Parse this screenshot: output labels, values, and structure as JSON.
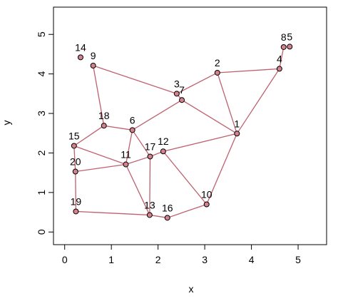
{
  "chart_data": {
    "type": "network",
    "x_label": "x",
    "y_label": "y",
    "xlim": [
      -0.24,
      5.61
    ],
    "ylim": [
      -0.32,
      5.69
    ],
    "xticks": [
      0,
      1,
      2,
      3,
      4,
      5
    ],
    "yticks": [
      0,
      1,
      2,
      3,
      4,
      5
    ],
    "edge_color": "#c0606e",
    "point_color": "#d4828e",
    "points": [
      {
        "label": "1",
        "x": 3.69,
        "y": 2.49
      },
      {
        "label": "2",
        "x": 3.27,
        "y": 4.03
      },
      {
        "label": "3",
        "x": 2.4,
        "y": 3.5
      },
      {
        "label": "4",
        "x": 4.6,
        "y": 4.13
      },
      {
        "label": "5",
        "x": 4.82,
        "y": 4.69
      },
      {
        "label": "6",
        "x": 1.45,
        "y": 2.58
      },
      {
        "label": "7",
        "x": 2.51,
        "y": 3.34
      },
      {
        "label": "8",
        "x": 4.69,
        "y": 4.68
      },
      {
        "label": "9",
        "x": 0.61,
        "y": 4.21
      },
      {
        "label": "10",
        "x": 3.04,
        "y": 0.7
      },
      {
        "label": "11",
        "x": 1.31,
        "y": 1.71
      },
      {
        "label": "12",
        "x": 2.11,
        "y": 2.04
      },
      {
        "label": "13",
        "x": 1.82,
        "y": 0.43
      },
      {
        "label": "14",
        "x": 0.34,
        "y": 4.42
      },
      {
        "label": "15",
        "x": 0.2,
        "y": 2.18
      },
      {
        "label": "16",
        "x": 2.2,
        "y": 0.36
      },
      {
        "label": "17",
        "x": 1.83,
        "y": 1.91
      },
      {
        "label": "18",
        "x": 0.84,
        "y": 2.69
      },
      {
        "label": "19",
        "x": 0.24,
        "y": 0.52
      },
      {
        "label": "20",
        "x": 0.23,
        "y": 1.53
      }
    ],
    "edges": [
      [
        "9",
        "3"
      ],
      [
        "9",
        "18"
      ],
      [
        "2",
        "3"
      ],
      [
        "2",
        "1"
      ],
      [
        "2",
        "4"
      ],
      [
        "1",
        "4"
      ],
      [
        "4",
        "8"
      ],
      [
        "3",
        "7"
      ],
      [
        "7",
        "6"
      ],
      [
        "7",
        "1"
      ],
      [
        "6",
        "18"
      ],
      [
        "6",
        "17"
      ],
      [
        "6",
        "11"
      ],
      [
        "17",
        "11"
      ],
      [
        "17",
        "12"
      ],
      [
        "17",
        "13"
      ],
      [
        "12",
        "1"
      ],
      [
        "12",
        "10"
      ],
      [
        "10",
        "1"
      ],
      [
        "10",
        "16"
      ],
      [
        "16",
        "13"
      ],
      [
        "13",
        "19"
      ],
      [
        "13",
        "11"
      ],
      [
        "19",
        "20"
      ],
      [
        "20",
        "11"
      ],
      [
        "20",
        "15"
      ],
      [
        "15",
        "18"
      ],
      [
        "15",
        "11"
      ]
    ]
  }
}
